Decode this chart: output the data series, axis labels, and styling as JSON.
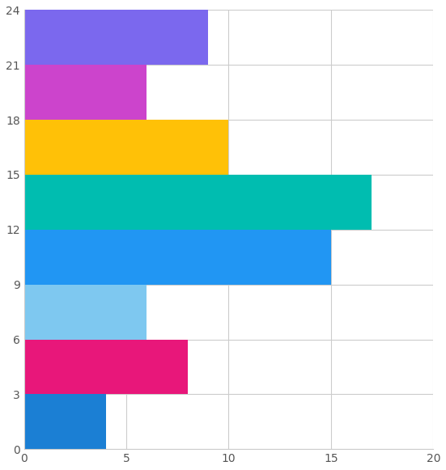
{
  "bars": [
    {
      "y": 1.5,
      "low": 0,
      "high": 4,
      "color": "#1B7FD4"
    },
    {
      "y": 4.5,
      "low": 0,
      "high": 8,
      "color": "#E8177A"
    },
    {
      "y": 7.5,
      "low": 0,
      "high": 6,
      "color": "#7EC8F0"
    },
    {
      "y": 10.5,
      "low": 0,
      "high": 15,
      "color": "#2196F3"
    },
    {
      "y": 13.5,
      "low": 0,
      "high": 17,
      "color": "#00BDB0"
    },
    {
      "y": 16.5,
      "low": 0,
      "high": 10,
      "color": "#FFC107"
    },
    {
      "y": 19.5,
      "low": 0,
      "high": 6,
      "color": "#CC44CC"
    },
    {
      "y": 22.5,
      "low": 0,
      "high": 9,
      "color": "#7B68EE"
    }
  ],
  "bar_height": 3.0,
  "xlim": [
    0,
    20
  ],
  "ylim": [
    0,
    24
  ],
  "xticks": [
    0,
    5,
    10,
    15,
    20
  ],
  "yticks": [
    0,
    3,
    6,
    9,
    12,
    15,
    18,
    21,
    24
  ],
  "background_color": "#ffffff",
  "grid_color": "#cccccc",
  "tick_label_color": "#555555",
  "figsize": [
    5.51,
    5.81
  ],
  "dpi": 100
}
